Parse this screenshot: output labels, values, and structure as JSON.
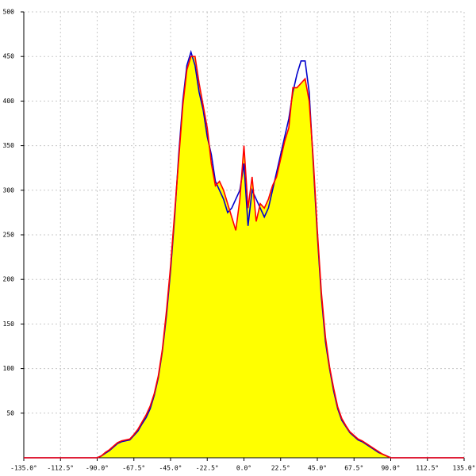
{
  "chart_data": {
    "type": "line",
    "x": [
      -135,
      -90,
      -87.5,
      -85,
      -82.5,
      -80,
      -77.5,
      -75,
      -72.5,
      -70,
      -67.5,
      -65,
      -62.5,
      -60,
      -57.5,
      -55,
      -52.5,
      -50,
      -47.5,
      -45,
      -42.5,
      -40,
      -37.5,
      -35,
      -32.5,
      -30,
      -27.5,
      -25,
      -22.5,
      -20,
      -17.5,
      -15,
      -12.5,
      -10,
      -7.5,
      -5,
      -2.5,
      0,
      2.5,
      5,
      7.5,
      10,
      12.5,
      15,
      17.5,
      20,
      22.5,
      25,
      27.5,
      30,
      32.5,
      35,
      37.5,
      40,
      42.5,
      45,
      47.5,
      50,
      52.5,
      55,
      57.5,
      60,
      62.5,
      65,
      67.5,
      70,
      72.5,
      75,
      77.5,
      80,
      82.5,
      85,
      87.5,
      90,
      135
    ],
    "series": [
      {
        "color": "#0000cc",
        "values": [
          0,
          0,
          2,
          5,
          8,
          12,
          16,
          18,
          19,
          20,
          25,
          30,
          38,
          45,
          55,
          70,
          90,
          120,
          160,
          210,
          270,
          340,
          400,
          440,
          455,
          440,
          410,
          390,
          360,
          340,
          310,
          300,
          290,
          275,
          280,
          290,
          300,
          330,
          260,
          300,
          290,
          280,
          270,
          280,
          300,
          320,
          340,
          360,
          380,
          410,
          430,
          445,
          445,
          410,
          330,
          250,
          180,
          130,
          100,
          75,
          55,
          42,
          35,
          28,
          24,
          20,
          18,
          15,
          12,
          9,
          6,
          4,
          2,
          0,
          0
        ]
      },
      {
        "color": "#ff0000",
        "values": [
          0,
          0,
          2,
          6,
          9,
          13,
          17,
          19,
          20,
          21,
          26,
          32,
          40,
          48,
          58,
          72,
          92,
          122,
          165,
          215,
          275,
          335,
          395,
          435,
          450,
          450,
          420,
          395,
          370,
          330,
          305,
          310,
          300,
          285,
          270,
          255,
          290,
          350,
          280,
          315,
          265,
          285,
          280,
          290,
          305,
          315,
          335,
          355,
          370,
          415,
          415,
          420,
          425,
          400,
          335,
          255,
          185,
          135,
          102,
          78,
          57,
          44,
          36,
          29,
          25,
          21,
          19,
          16,
          13,
          10,
          7,
          4,
          2,
          0,
          0
        ]
      }
    ],
    "area_fill": "#ffff00",
    "xlim": [
      -135,
      135
    ],
    "ylim": [
      0,
      500
    ],
    "xticks": [
      {
        "value": -135,
        "label": "-135.0°"
      },
      {
        "value": -112.5,
        "label": "-112.5°"
      },
      {
        "value": -90,
        "label": "-90.0°"
      },
      {
        "value": -67.5,
        "label": "-67.5°"
      },
      {
        "value": -45,
        "label": "-45.0°"
      },
      {
        "value": -22.5,
        "label": "-22.5°"
      },
      {
        "value": 0,
        "label": "0.0°"
      },
      {
        "value": 22.5,
        "label": "22.5°"
      },
      {
        "value": 45,
        "label": "45.0°"
      },
      {
        "value": 67.5,
        "label": "67.5°"
      },
      {
        "value": 90,
        "label": "90.0°"
      },
      {
        "value": 112.5,
        "label": "112.5°"
      },
      {
        "value": 135,
        "label": "135.0°"
      }
    ],
    "yticks": [
      50,
      100,
      150,
      200,
      250,
      300,
      350,
      400,
      450,
      500
    ],
    "grid": true
  }
}
